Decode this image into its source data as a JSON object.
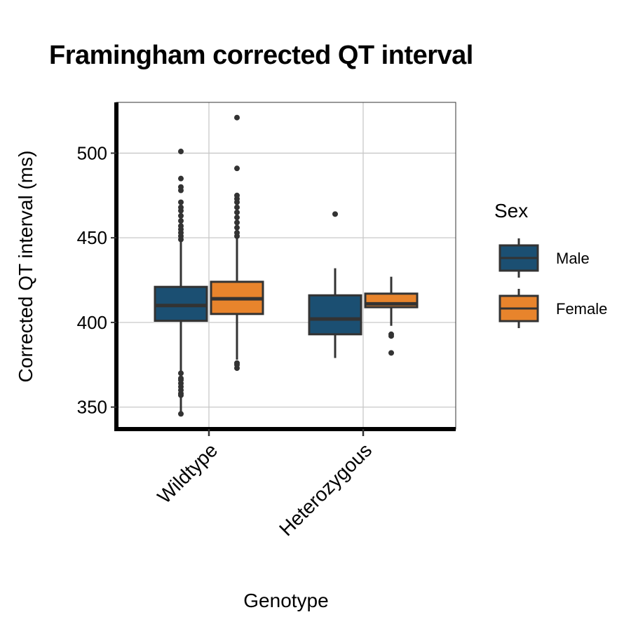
{
  "chart_data": {
    "type": "box",
    "title": "Framingham corrected QT interval",
    "xlabel": "Genotype",
    "ylabel": "Corrected QT interval (ms)",
    "categories": [
      "Wildtype",
      "Heterozygous"
    ],
    "y_ticks": [
      350,
      400,
      450,
      500
    ],
    "ylim": [
      337,
      530
    ],
    "grid": true,
    "legend": {
      "title": "Sex",
      "placement": "right"
    },
    "series": [
      {
        "name": "Male",
        "color": "#1b4f72",
        "boxes": [
          {
            "category": "Wildtype",
            "min": 346,
            "q1": 401,
            "median": 410,
            "q3": 421,
            "max": 449,
            "outliers": [
              346,
              357,
              358,
              360,
              362,
              364,
              366,
              367,
              370,
              449,
              451,
              453,
              455,
              457,
              460,
              463,
              466,
              468,
              471,
              478,
              480,
              485,
              501
            ]
          },
          {
            "category": "Heterozygous",
            "min": 379,
            "q1": 393,
            "median": 402,
            "q3": 416,
            "max": 432,
            "outliers": [
              464
            ]
          }
        ]
      },
      {
        "name": "Female",
        "color": "#e8842c",
        "boxes": [
          {
            "category": "Wildtype",
            "min": 378,
            "q1": 405,
            "median": 414,
            "q3": 424,
            "max": 450,
            "outliers": [
              373,
              375,
              376,
              451,
              453,
              456,
              459,
              462,
              465,
              468,
              471,
              473,
              475,
              491,
              521
            ]
          },
          {
            "category": "Heterozygous",
            "min": 398,
            "q1": 409,
            "median": 411,
            "q3": 417,
            "max": 427,
            "outliers": [
              382,
              392,
              393
            ]
          }
        ]
      }
    ]
  }
}
